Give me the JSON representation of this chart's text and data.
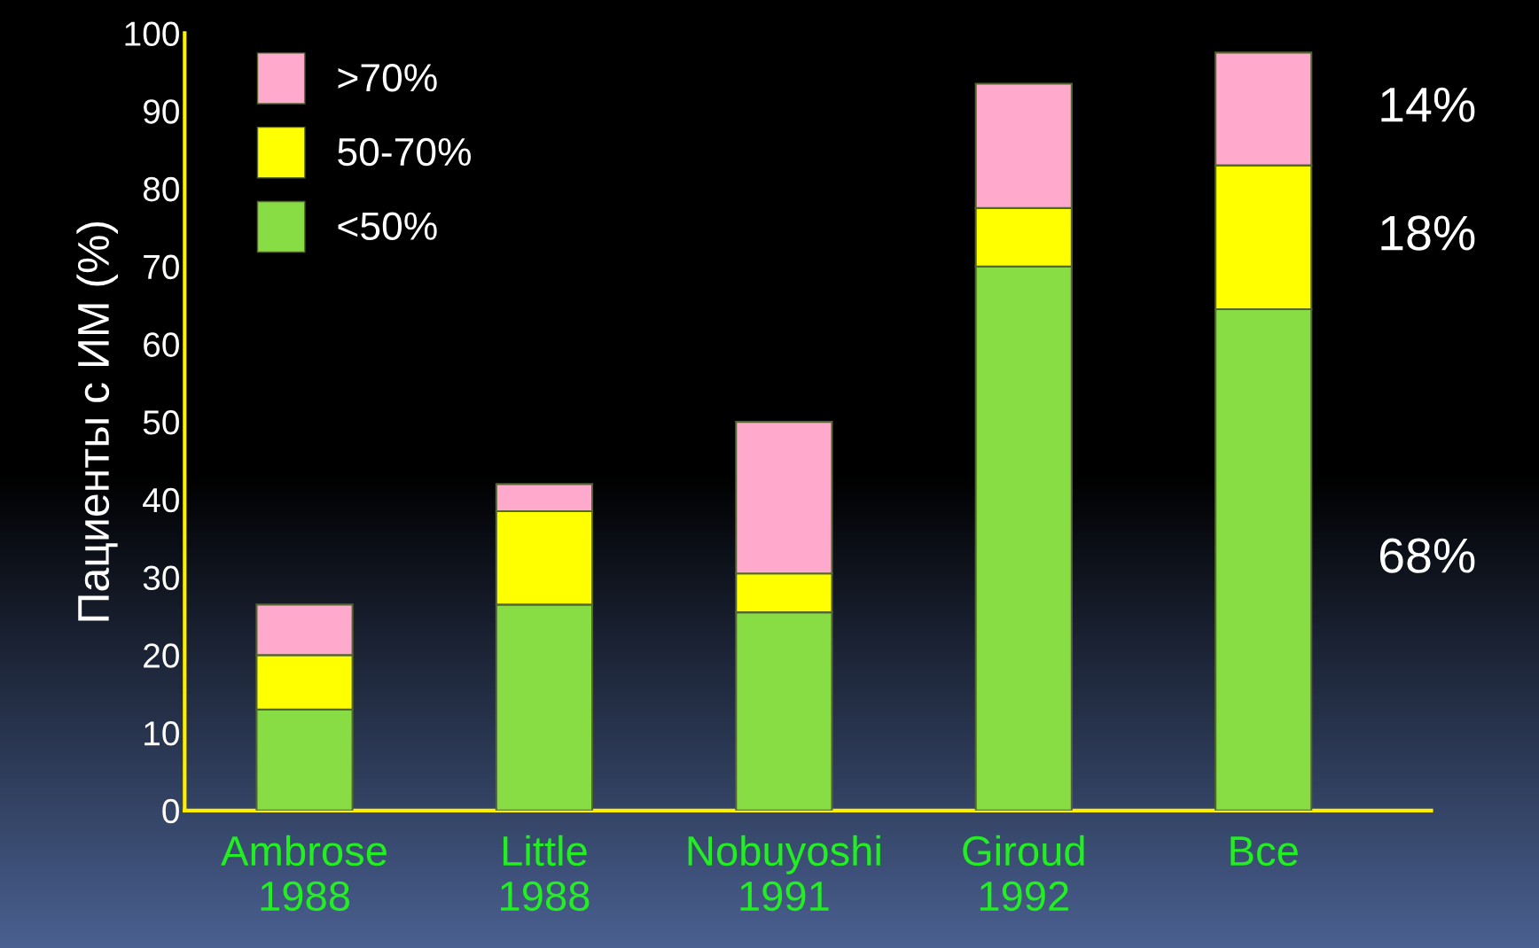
{
  "chart_data": {
    "type": "bar",
    "stacked": true,
    "ylabel": "Пациенты с ИМ (%)",
    "categories": [
      "Ambrose\n1988",
      "Little\n1988",
      "Nobuyoshi\n1991",
      "Giroud\n1992",
      "Все"
    ],
    "series": [
      {
        "name": "<50%",
        "color": "#88dd44",
        "values": [
          13,
          26.5,
          25.5,
          70,
          64.5
        ]
      },
      {
        "name": "50-70%",
        "color": "#ffff00",
        "values": [
          7,
          12,
          5,
          7.5,
          18.5
        ]
      },
      {
        "name": ">70%",
        "color": "#ffaacc",
        "values": [
          6.5,
          3.5,
          19.5,
          16,
          14.5
        ]
      }
    ],
    "ylim": [
      0,
      100
    ],
    "yticks": [
      0,
      10,
      20,
      30,
      40,
      50,
      60,
      70,
      80,
      90,
      100
    ],
    "grid": false,
    "legend": "top left",
    "annotations": [
      "14%",
      "18%",
      "68%"
    ]
  }
}
